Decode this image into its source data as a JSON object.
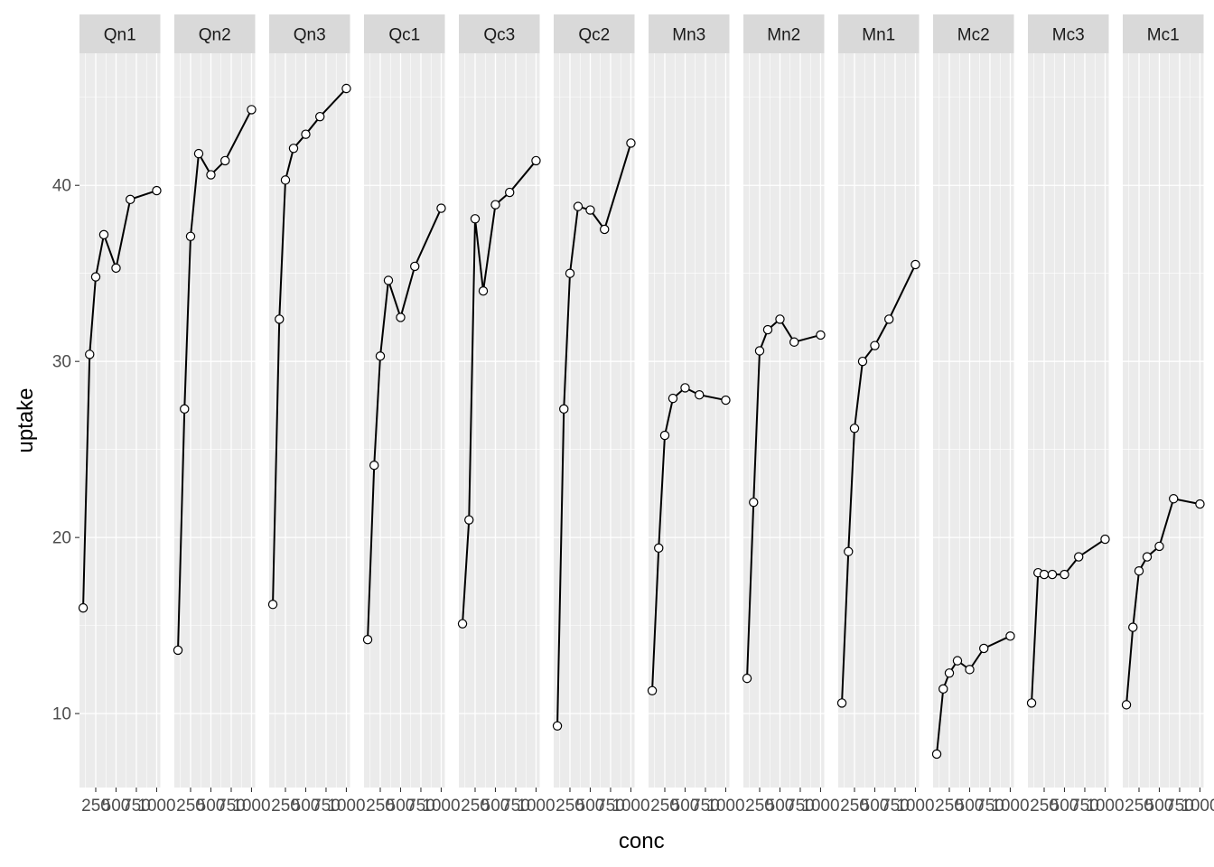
{
  "chart_data": {
    "type": "line",
    "facet": "small-multiples",
    "xlabel": "conc",
    "ylabel": "uptake",
    "x": [
      95,
      175,
      250,
      350,
      500,
      675,
      1000
    ],
    "x_ticks": [
      250,
      500,
      750,
      1000
    ],
    "x_tick_labels": [
      "250",
      "500",
      "750",
      "1000"
    ],
    "xlim": [
      50,
      1045
    ],
    "y_ticks": [
      10,
      20,
      30,
      40
    ],
    "y_tick_labels": [
      "10",
      "20",
      "30",
      "40"
    ],
    "ylim": [
      5.8,
      47.5
    ],
    "grid": true,
    "legend": "none",
    "colors": {
      "panel_bg": "#ebebeb",
      "grid": "#ffffff",
      "strip_bg": "#d9d9d9",
      "line": "#000000",
      "point_fill": "#ffffff"
    },
    "series": [
      {
        "name": "Qn1",
        "values": [
          16.0,
          30.4,
          34.8,
          37.2,
          35.3,
          39.2,
          39.7
        ]
      },
      {
        "name": "Qn2",
        "values": [
          13.6,
          27.3,
          37.1,
          41.8,
          40.6,
          41.4,
          44.3
        ]
      },
      {
        "name": "Qn3",
        "values": [
          16.2,
          32.4,
          40.3,
          42.1,
          42.9,
          43.9,
          45.5
        ]
      },
      {
        "name": "Qc1",
        "values": [
          14.2,
          24.1,
          30.3,
          34.6,
          32.5,
          35.4,
          38.7
        ]
      },
      {
        "name": "Qc3",
        "values": [
          15.1,
          21.0,
          38.1,
          34.0,
          38.9,
          39.6,
          41.4
        ]
      },
      {
        "name": "Qc2",
        "values": [
          9.3,
          27.3,
          35.0,
          38.8,
          38.6,
          37.5,
          42.4
        ]
      },
      {
        "name": "Mn3",
        "values": [
          11.3,
          19.4,
          25.8,
          27.9,
          28.5,
          28.1,
          27.8
        ]
      },
      {
        "name": "Mn2",
        "values": [
          12.0,
          22.0,
          30.6,
          31.8,
          32.4,
          31.1,
          31.5
        ]
      },
      {
        "name": "Mn1",
        "values": [
          10.6,
          19.2,
          26.2,
          30.0,
          30.9,
          32.4,
          35.5
        ]
      },
      {
        "name": "Mc2",
        "values": [
          7.7,
          11.4,
          12.3,
          13.0,
          12.5,
          13.7,
          14.4
        ]
      },
      {
        "name": "Mc3",
        "values": [
          10.6,
          18.0,
          17.9,
          17.9,
          17.9,
          18.9,
          19.9
        ]
      },
      {
        "name": "Mc1",
        "values": [
          10.5,
          14.9,
          18.1,
          18.9,
          19.5,
          22.2,
          21.9
        ]
      }
    ]
  }
}
